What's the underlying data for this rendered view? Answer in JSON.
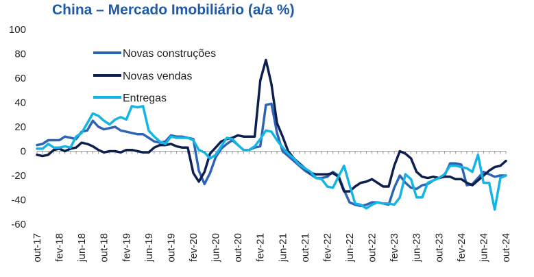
{
  "chart_data": {
    "type": "line",
    "title": "China – Mercado Imobiliário (a/a %)",
    "ylim": [
      -60,
      100
    ],
    "yticks": [
      100,
      80,
      60,
      40,
      20,
      0,
      -20,
      -40,
      -60
    ],
    "x_tick_labels": [
      "out-17",
      "fev-18",
      "jun-18",
      "out-18",
      "fev-19",
      "jun-19",
      "out-19",
      "fev-20",
      "jun-20",
      "out-20",
      "fev-21",
      "jun-21",
      "out-21",
      "fev-22",
      "jun-22",
      "out-22",
      "fev-23",
      "jun-23",
      "out-23",
      "fev-24",
      "jun-24",
      "out-24"
    ],
    "x_months": [
      "out-17",
      "nov-17",
      "dez-17",
      "jan-18",
      "fev-18",
      "mar-18",
      "abr-18",
      "mai-18",
      "jun-18",
      "jul-18",
      "ago-18",
      "set-18",
      "out-18",
      "nov-18",
      "dez-18",
      "jan-19",
      "fev-19",
      "mar-19",
      "abr-19",
      "mai-19",
      "jun-19",
      "jul-19",
      "ago-19",
      "set-19",
      "out-19",
      "nov-19",
      "dez-19",
      "jan-20",
      "fev-20",
      "mar-20",
      "abr-20",
      "mai-20",
      "jun-20",
      "jul-20",
      "ago-20",
      "set-20",
      "out-20",
      "nov-20",
      "dez-20",
      "jan-21",
      "fev-21",
      "mar-21",
      "abr-21",
      "mai-21",
      "jun-21",
      "jul-21",
      "ago-21",
      "set-21",
      "out-21",
      "nov-21",
      "dez-21",
      "jan-22",
      "fev-22",
      "mar-22",
      "abr-22",
      "mai-22",
      "jun-22",
      "jul-22",
      "ago-22",
      "set-22",
      "out-22",
      "nov-22",
      "dez-22",
      "jan-23",
      "fev-23",
      "mar-23",
      "abr-23",
      "mai-23",
      "jun-23",
      "jul-23",
      "ago-23",
      "set-23",
      "out-23",
      "nov-23",
      "dez-23",
      "jan-24",
      "fev-24",
      "mar-24",
      "abr-24",
      "mai-24",
      "jun-24",
      "jul-24",
      "ago-24",
      "set-24",
      "out-24"
    ],
    "grid": false,
    "legend_position": "top-left",
    "series": [
      {
        "name": "Novas construções",
        "color": "#2e64b5",
        "values": [
          5,
          6,
          9,
          9,
          9,
          12,
          11,
          10,
          16,
          17,
          25,
          20,
          18,
          19,
          20,
          17,
          16,
          15,
          14,
          14,
          11,
          8,
          7,
          8,
          13,
          12,
          12,
          11,
          10,
          -16,
          -27,
          -18,
          -5,
          2,
          6,
          9,
          5,
          1,
          1,
          3,
          4,
          38,
          39,
          15,
          0,
          -4,
          -8,
          -12,
          -16,
          -19,
          -22,
          -22,
          -21,
          -17,
          -20,
          -32,
          -42,
          -44,
          -45,
          -44,
          -42,
          -42,
          -43,
          -44,
          -30,
          -20,
          -26,
          -30,
          -31,
          -28,
          -27,
          -24,
          -22,
          -20,
          -10,
          -10,
          -11,
          -28,
          -27,
          -22,
          -17,
          -19,
          -21,
          -20,
          -20
        ]
      },
      {
        "name": "Novas vendas",
        "color": "#0c1f4f",
        "values": [
          -3,
          -4,
          -3,
          1,
          2,
          0,
          2,
          3,
          7,
          6,
          4,
          1,
          -1,
          0,
          0,
          -1,
          1,
          1,
          0,
          -1,
          -1,
          3,
          5,
          5,
          6,
          4,
          3,
          3,
          -18,
          -25,
          -17,
          -2,
          3,
          8,
          10,
          11,
          13,
          12,
          12,
          12,
          58,
          75,
          55,
          23,
          12,
          0,
          -6,
          -10,
          -14,
          -18,
          -19,
          -19,
          -19,
          -18,
          -21,
          -33,
          -33,
          -29,
          -26,
          -25,
          -23,
          -26,
          -29,
          -29,
          -12,
          0,
          -2,
          -6,
          -17,
          -21,
          -22,
          -21,
          -22,
          -21,
          -21,
          -23,
          -23,
          -26,
          -28,
          -24,
          -20,
          -16,
          -13,
          -12,
          -8
        ]
      },
      {
        "name": "Entregas",
        "color": "#14b4e4",
        "values": [
          2,
          2,
          6,
          3,
          3,
          4,
          3,
          12,
          15,
          23,
          31,
          29,
          25,
          22,
          26,
          28,
          26,
          37,
          36,
          37,
          17,
          12,
          8,
          6,
          12,
          11,
          11,
          11,
          9,
          1,
          -1,
          -6,
          -3,
          4,
          11,
          10,
          5,
          1,
          1,
          4,
          10,
          17,
          16,
          9,
          3,
          -2,
          -6,
          -11,
          -14,
          -17,
          -22,
          -23,
          -29,
          -30,
          -21,
          -12,
          -28,
          -43,
          -44,
          -47,
          -44,
          -42,
          -43,
          -43,
          -44,
          -38,
          -19,
          -23,
          -38,
          -38,
          -26,
          -24,
          -22,
          -19,
          -12,
          -12,
          -13,
          -14,
          -17,
          -3,
          -26,
          -26,
          -48,
          -22,
          -20
        ]
      }
    ]
  }
}
